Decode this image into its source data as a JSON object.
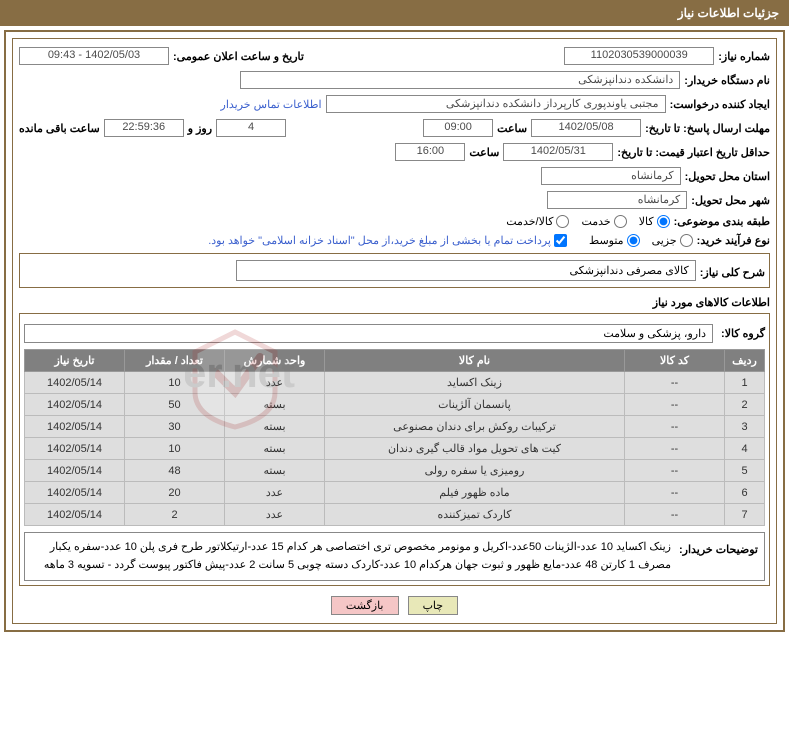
{
  "header": {
    "title": "جزئیات اطلاعات نیاز"
  },
  "labels": {
    "need_no": "شماره نیاز:",
    "announce_dt": "تاریخ و ساعت اعلان عمومی:",
    "buyer_org": "نام دستگاه خریدار:",
    "requester": "ایجاد کننده درخواست:",
    "contact": "اطلاعات تماس خریدار",
    "deadline": "مهلت ارسال پاسخ: تا تاریخ:",
    "hour": "ساعت",
    "days_and": "روز و",
    "remain": "ساعت باقی مانده",
    "validity": "حداقل تاریخ اعتبار قیمت: تا تاریخ:",
    "province": "استان محل تحویل:",
    "city": "شهر محل تحویل:",
    "subject_cat": "طبقه بندی موضوعی:",
    "cat_goods": "کالا",
    "cat_service": "خدمت",
    "cat_both": "کالا/خدمت",
    "purchase_type": "نوع فرآیند خرید:",
    "pt_small": "جزیی",
    "pt_medium": "متوسط",
    "pay_note": "پرداخت تمام یا بخشی از مبلغ خرید،از محل \"اسناد خزانه اسلامی\" خواهد بود.",
    "need_desc": "شرح کلی نیاز:",
    "items_info": "اطلاعات کالاهای مورد نیاز",
    "group": "گروه کالا:",
    "buyer_notes": "توضیحات خریدار:",
    "print": "چاپ",
    "back": "بازگشت"
  },
  "fields": {
    "need_no": "1102030539000039",
    "announce_dt": "1402/05/03 - 09:43",
    "buyer_org": "دانشکده دندانپزشکی",
    "requester": "مجتبی  یاوندپوری کارپرداز دانشکده دندانپزشکی",
    "deadline_date": "1402/05/08",
    "deadline_time": "09:00",
    "remain_days": "4",
    "remain_time": "22:59:36",
    "validity_date": "1402/05/31",
    "validity_time": "16:00",
    "province": "کرمانشاه",
    "city": "کرمانشاه",
    "pay_checked": true,
    "need_desc": "کالای مصرفی دندانپزشکی",
    "group": "دارو، پزشکی و سلامت",
    "buyer_notes": "زینک اکساید 10 عدد-الژینات 50عدد-اکریل  و مونومر  مخصوص تری اختصاصی  هر کدام 15 عدد-ارتیکلاتور طرح فری پلن 10 عدد-سفره یکبار مصرف 1 کارتن 48 عدد-مایع ظهور و ثبوت جهان هرکدام 10 عدد-کاردک دسته چوبی  5 سانت 2 عدد-پیش فاکتور پیوست گردد -  تسویه 3 ماهه"
  },
  "table": {
    "headers": {
      "row": "ردیف",
      "code": "کد کالا",
      "name": "نام کالا",
      "unit": "واحد شمارش",
      "qty": "تعداد / مقدار",
      "date": "تاریخ نیاز"
    },
    "rows": [
      {
        "n": "1",
        "code": "--",
        "name": "زینک اکساید",
        "unit": "عدد",
        "qty": "10",
        "date": "1402/05/14"
      },
      {
        "n": "2",
        "code": "--",
        "name": "پانسمان آلژینات",
        "unit": "بسته",
        "qty": "50",
        "date": "1402/05/14"
      },
      {
        "n": "3",
        "code": "--",
        "name": "ترکیبات روکش برای دندان مصنوعی",
        "unit": "بسته",
        "qty": "30",
        "date": "1402/05/14"
      },
      {
        "n": "4",
        "code": "--",
        "name": "کیت های تحویل مواد قالب گیری دندان",
        "unit": "بسته",
        "qty": "10",
        "date": "1402/05/14"
      },
      {
        "n": "5",
        "code": "--",
        "name": "رومیزی یا سفره رولی",
        "unit": "بسته",
        "qty": "48",
        "date": "1402/05/14"
      },
      {
        "n": "6",
        "code": "--",
        "name": "ماده ظهور فیلم",
        "unit": "عدد",
        "qty": "20",
        "date": "1402/05/14"
      },
      {
        "n": "7",
        "code": "--",
        "name": "کاردک تمیزکننده",
        "unit": "عدد",
        "qty": "2",
        "date": "1402/05/14"
      }
    ]
  },
  "colors": {
    "brand": "#876d44",
    "th_bg": "#808080",
    "td_bg": "#dedede",
    "link": "#3a5fcd",
    "btn_print": "#e8e8b8",
    "btn_back": "#f5c6c6"
  }
}
